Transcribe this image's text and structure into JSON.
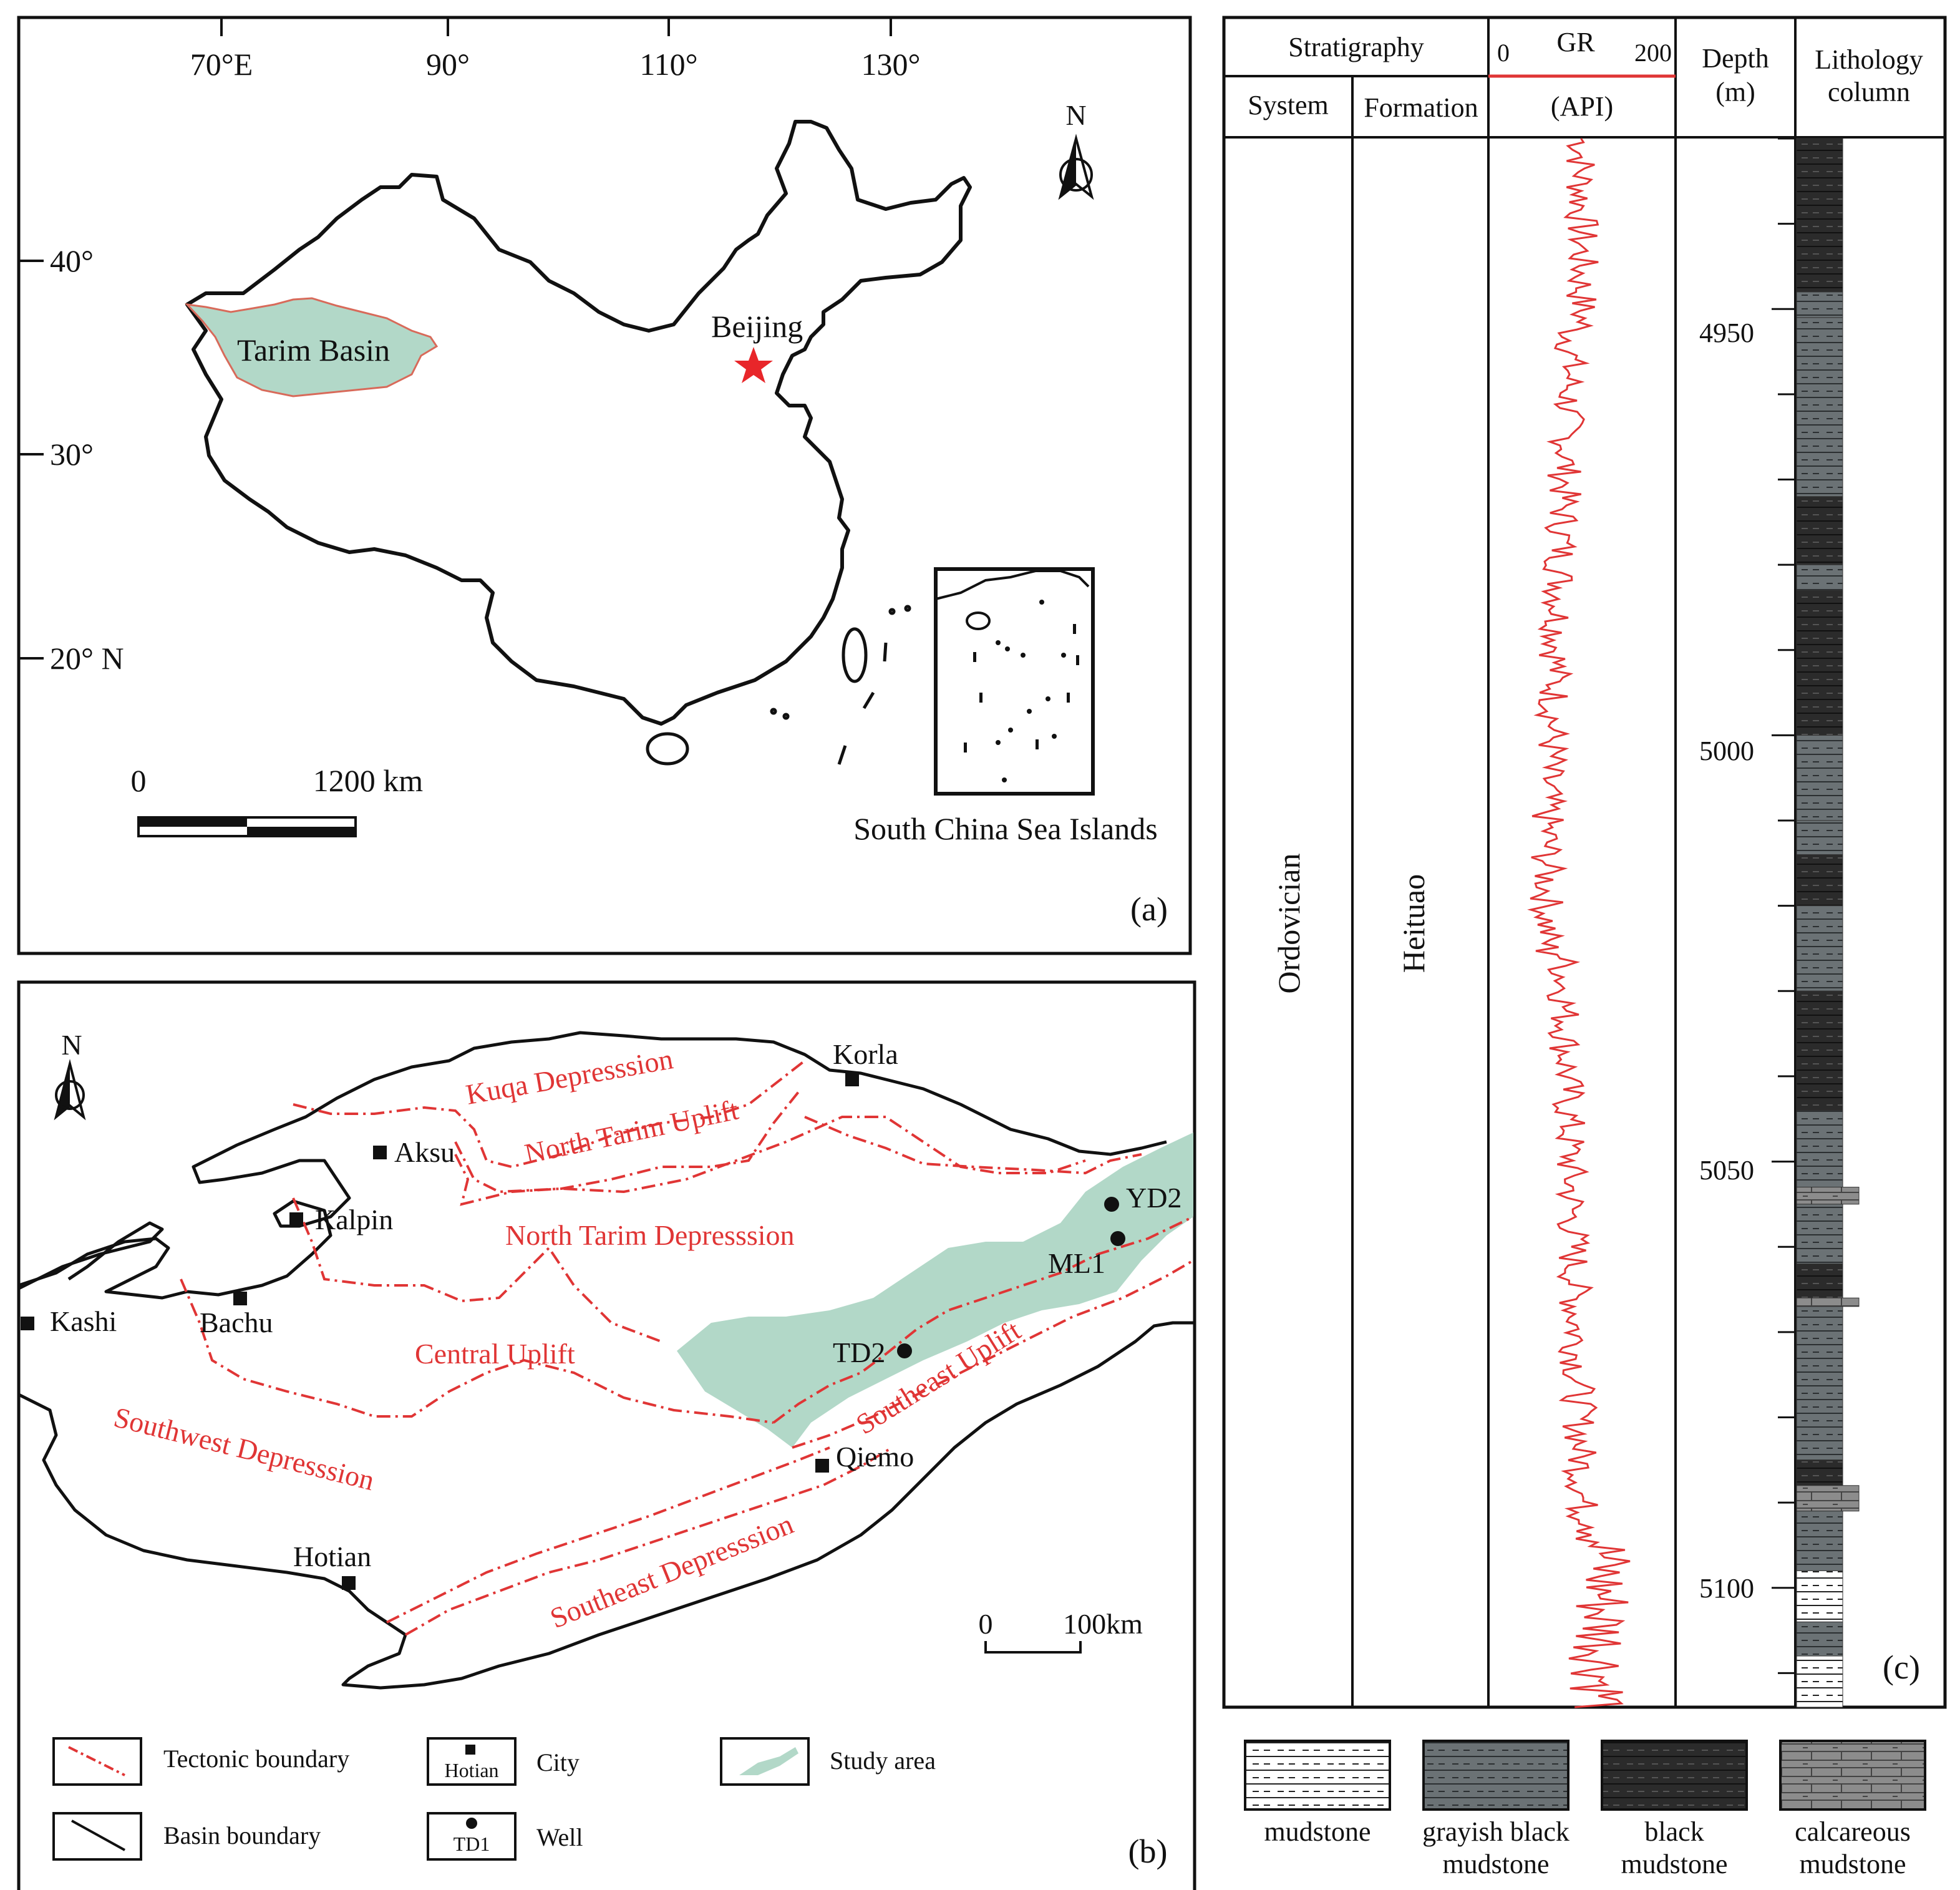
{
  "panel_a": {
    "label": "(a)",
    "lon_ticks": [
      "70°E",
      "90°",
      "110°",
      "130°"
    ],
    "lat_ticks": [
      "40°",
      "30°",
      "20° N"
    ],
    "north": "N",
    "basin_label": "Tarim Basin",
    "capital_label": "Beijing",
    "scale_start": "0",
    "scale_end": "1200 km",
    "inset_caption": "South China Sea Islands",
    "colors": {
      "basin_fill": "#b2d8c8",
      "capital_star": "#e8262a"
    }
  },
  "panel_b": {
    "label": "(b)",
    "north": "N",
    "cities": [
      "Korla",
      "Aksu",
      "Kalpin",
      "Kashi",
      "Bachu",
      "Qiemo",
      "Hotian"
    ],
    "wells": [
      "YD2",
      "ML1",
      "TD2"
    ],
    "units": [
      "Kuqa Depresssion",
      "North Tarim Uplift",
      "North Tarim Depresssion",
      "Central Uplift",
      "Southwest Depresssion",
      "Southeast Uplift",
      "Southeast Depresssion"
    ],
    "scale_start": "0",
    "scale_end": "100km",
    "legend": {
      "tectonic": "Tectonic boundary",
      "basin": "Basin boundary",
      "city": "City",
      "city_sample": "Hotian",
      "well": "Well",
      "well_sample": "TD1",
      "study": "Study area"
    },
    "colors": {
      "tectonic_line": "#e03535",
      "study_fill": "#b2d8c8"
    }
  },
  "panel_c": {
    "label": "(c)",
    "headers": {
      "stratigraphy": "Stratigraphy",
      "system": "System",
      "formation": "Formation",
      "gr": "GR",
      "gr_min": "0",
      "gr_max": "200",
      "api": "(API)",
      "depth": "Depth",
      "depth_unit": "(m)",
      "lithology1": "Lithology",
      "lithology2": "column"
    },
    "system": "Ordovician",
    "formation": "Heituao",
    "depth_ticks": [
      "4950",
      "5000",
      "5050",
      "5100"
    ],
    "depth_range": [
      4930,
      5114
    ],
    "lithology_legend": [
      {
        "line1": "mudstone",
        "line2": "",
        "color": "#ffffff"
      },
      {
        "line1": "grayish black",
        "line2": "mudstone",
        "color": "#6b7275"
      },
      {
        "line1": "black",
        "line2": "mudstone",
        "color": "#2b2b2b"
      },
      {
        "line1": "calcareous",
        "line2": "mudstone",
        "color": "#8c8c8c"
      }
    ],
    "colors": {
      "gr_curve": "#e03535"
    }
  }
}
